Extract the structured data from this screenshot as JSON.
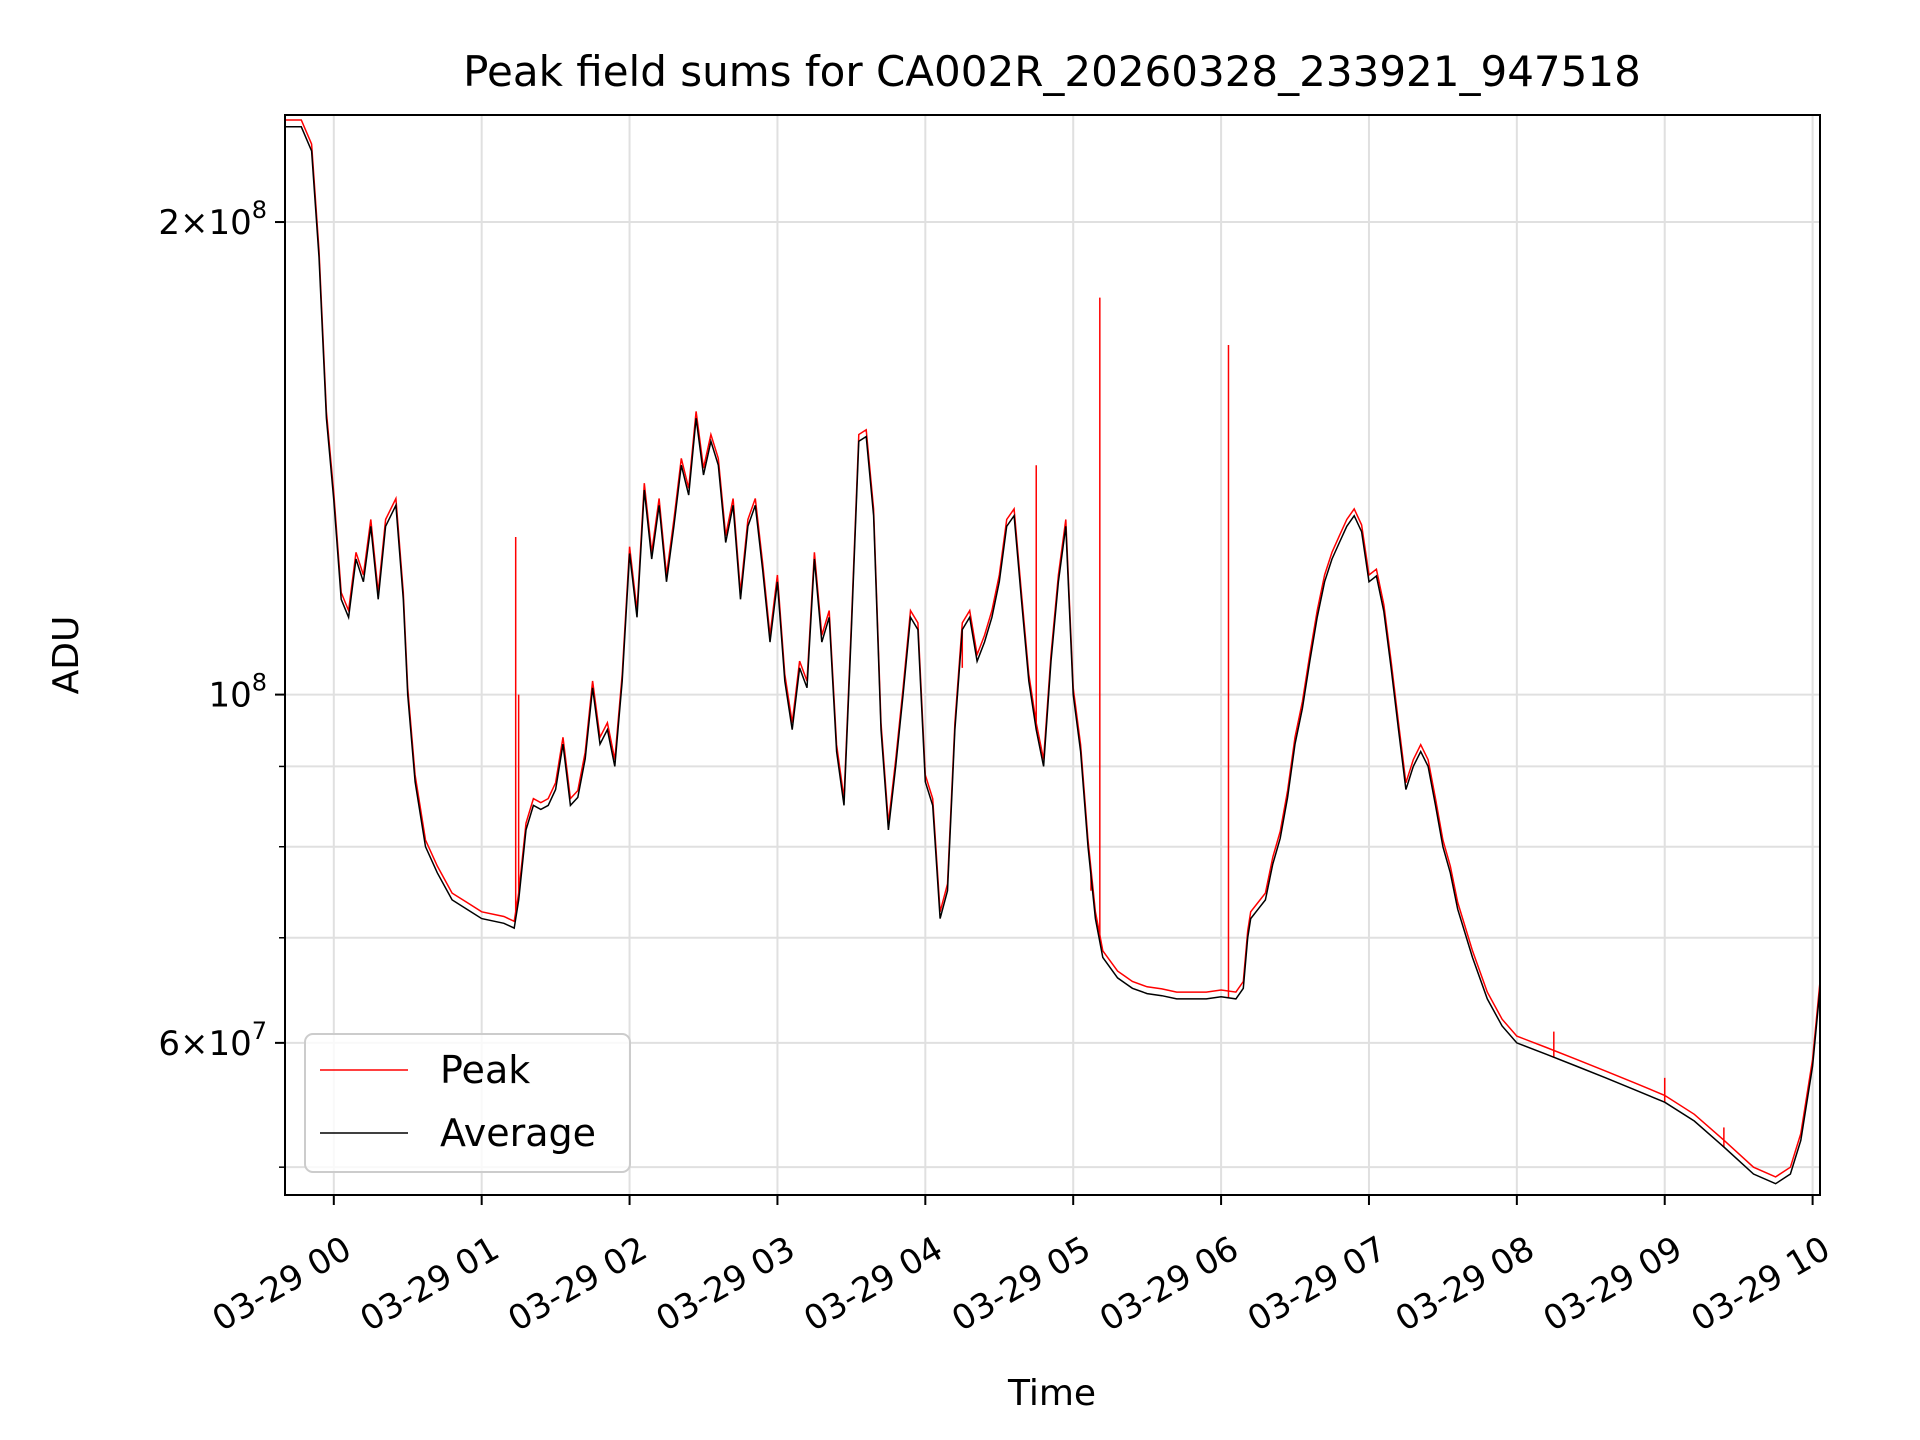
{
  "chart_data": {
    "type": "line",
    "title": "Peak field sums for CA002R_20260328_233921_947518",
    "xlabel": "Time",
    "ylabel": "ADU",
    "yscale": "log",
    "ylim": [
      48000000,
      234000000
    ],
    "xlim": [
      -0.33,
      10.05
    ],
    "x_unit": "hours since 03-29 00:00",
    "grid": true,
    "x_ticks": [
      {
        "value": 0,
        "label": "03-29 00"
      },
      {
        "value": 1,
        "label": "03-29 01"
      },
      {
        "value": 2,
        "label": "03-29 02"
      },
      {
        "value": 3,
        "label": "03-29 03"
      },
      {
        "value": 4,
        "label": "03-29 04"
      },
      {
        "value": 5,
        "label": "03-29 05"
      },
      {
        "value": 6,
        "label": "03-29 06"
      },
      {
        "value": 7,
        "label": "03-29 07"
      },
      {
        "value": 8,
        "label": "03-29 08"
      },
      {
        "value": 9,
        "label": "03-29 09"
      },
      {
        "value": 10,
        "label": "03-29 10"
      }
    ],
    "y_major_ticks": [
      {
        "value": 200000000,
        "mantissa": "2",
        "exp": "8"
      },
      {
        "value": 100000000,
        "mantissa": "",
        "exp": "8"
      },
      {
        "value": 60000000,
        "mantissa": "6",
        "exp": "7"
      }
    ],
    "y_minor_ticks": [
      50000000,
      70000000,
      80000000,
      90000000
    ],
    "legend": {
      "position": "lower-left",
      "entries": [
        {
          "label": "Peak",
          "color": "#ff0000"
        },
        {
          "label": "Average",
          "color": "#000000"
        }
      ]
    },
    "series": [
      {
        "name": "Average",
        "color": "#000000",
        "points": [
          [
            -0.33,
            230000000.0
          ],
          [
            -0.22,
            230000000.0
          ],
          [
            -0.15,
            222000000.0
          ],
          [
            -0.1,
            190000000.0
          ],
          [
            -0.05,
            150000000.0
          ],
          [
            0.0,
            133000000.0
          ],
          [
            0.05,
            115000000.0
          ],
          [
            0.1,
            112000000.0
          ],
          [
            0.15,
            122000000.0
          ],
          [
            0.2,
            118000000.0
          ],
          [
            0.25,
            128000000.0
          ],
          [
            0.3,
            115000000.0
          ],
          [
            0.35,
            128000000.0
          ],
          [
            0.42,
            132000000.0
          ],
          [
            0.47,
            115000000.0
          ],
          [
            0.5,
            100000000.0
          ],
          [
            0.55,
            88000000.0
          ],
          [
            0.62,
            80000000.0
          ],
          [
            0.7,
            77000000.0
          ],
          [
            0.8,
            74000000.0
          ],
          [
            0.9,
            73000000.0
          ],
          [
            1.0,
            72000000.0
          ],
          [
            1.15,
            71500000.0
          ],
          [
            1.22,
            71000000.0
          ],
          [
            1.25,
            74000000.0
          ],
          [
            1.3,
            82000000.0
          ],
          [
            1.35,
            85000000.0
          ],
          [
            1.4,
            84500000.0
          ],
          [
            1.45,
            85000000.0
          ],
          [
            1.5,
            87000000.0
          ],
          [
            1.55,
            93000000.0
          ],
          [
            1.6,
            85000000.0
          ],
          [
            1.65,
            86000000.0
          ],
          [
            1.7,
            91000000.0
          ],
          [
            1.75,
            101000000.0
          ],
          [
            1.8,
            93000000.0
          ],
          [
            1.85,
            95000000.0
          ],
          [
            1.9,
            90000000.0
          ],
          [
            1.95,
            102000000.0
          ],
          [
            2.0,
            123000000.0
          ],
          [
            2.05,
            112000000.0
          ],
          [
            2.1,
            135000000.0
          ],
          [
            2.15,
            122000000.0
          ],
          [
            2.2,
            132000000.0
          ],
          [
            2.25,
            118000000.0
          ],
          [
            2.3,
            128000000.0
          ],
          [
            2.35,
            140000000.0
          ],
          [
            2.4,
            134000000.0
          ],
          [
            2.45,
            150000000.0
          ],
          [
            2.5,
            138000000.0
          ],
          [
            2.55,
            145000000.0
          ],
          [
            2.6,
            140000000.0
          ],
          [
            2.65,
            125000000.0
          ],
          [
            2.7,
            132000000.0
          ],
          [
            2.75,
            115000000.0
          ],
          [
            2.8,
            128000000.0
          ],
          [
            2.85,
            132000000.0
          ],
          [
            2.9,
            120000000.0
          ],
          [
            2.95,
            108000000.0
          ],
          [
            3.0,
            118000000.0
          ],
          [
            3.05,
            102000000.0
          ],
          [
            3.1,
            95000000.0
          ],
          [
            3.15,
            104000000.0
          ],
          [
            3.2,
            101000000.0
          ],
          [
            3.25,
            122000000.0
          ],
          [
            3.3,
            108000000.0
          ],
          [
            3.35,
            112000000.0
          ],
          [
            3.4,
            92000000.0
          ],
          [
            3.45,
            85000000.0
          ],
          [
            3.5,
            110000000.0
          ],
          [
            3.55,
            145000000.0
          ],
          [
            3.6,
            146000000.0
          ],
          [
            3.65,
            130000000.0
          ],
          [
            3.7,
            95000000.0
          ],
          [
            3.75,
            82000000.0
          ],
          [
            3.8,
            90000000.0
          ],
          [
            3.85,
            100000000.0
          ],
          [
            3.9,
            112000000.0
          ],
          [
            3.95,
            110000000.0
          ],
          [
            4.0,
            88000000.0
          ],
          [
            4.05,
            85000000.0
          ],
          [
            4.1,
            72000000.0
          ],
          [
            4.15,
            75000000.0
          ],
          [
            4.2,
            95000000.0
          ],
          [
            4.25,
            110000000.0
          ],
          [
            4.3,
            112000000.0
          ],
          [
            4.35,
            105000000.0
          ],
          [
            4.4,
            108000000.0
          ],
          [
            4.45,
            112000000.0
          ],
          [
            4.5,
            118000000.0
          ],
          [
            4.55,
            128000000.0
          ],
          [
            4.6,
            130000000.0
          ],
          [
            4.65,
            115000000.0
          ],
          [
            4.7,
            102000000.0
          ],
          [
            4.75,
            95000000.0
          ],
          [
            4.8,
            90000000.0
          ],
          [
            4.85,
            105000000.0
          ],
          [
            4.9,
            118000000.0
          ],
          [
            4.95,
            128000000.0
          ],
          [
            5.0,
            100000000.0
          ],
          [
            5.05,
            92000000.0
          ],
          [
            5.1,
            80000000.0
          ],
          [
            5.15,
            72000000.0
          ],
          [
            5.2,
            68000000.0
          ],
          [
            5.3,
            66000000.0
          ],
          [
            5.35,
            65500000.0
          ],
          [
            5.4,
            65000000.0
          ],
          [
            5.5,
            64500000.0
          ],
          [
            5.6,
            64300000.0
          ],
          [
            5.7,
            64000000.0
          ],
          [
            5.8,
            64000000.0
          ],
          [
            5.9,
            64000000.0
          ],
          [
            6.0,
            64200000.0
          ],
          [
            6.1,
            64000000.0
          ],
          [
            6.15,
            65000000.0
          ],
          [
            6.18,
            70000000.0
          ],
          [
            6.2,
            72000000.0
          ],
          [
            6.25,
            73000000.0
          ],
          [
            6.3,
            74000000.0
          ],
          [
            6.35,
            78000000.0
          ],
          [
            6.4,
            81000000.0
          ],
          [
            6.45,
            86000000.0
          ],
          [
            6.5,
            93000000.0
          ],
          [
            6.55,
            98000000.0
          ],
          [
            6.6,
            105000000.0
          ],
          [
            6.65,
            112000000.0
          ],
          [
            6.7,
            118000000.0
          ],
          [
            6.75,
            122000000.0
          ],
          [
            6.8,
            125000000.0
          ],
          [
            6.85,
            128000000.0
          ],
          [
            6.9,
            130000000.0
          ],
          [
            6.95,
            127000000.0
          ],
          [
            7.0,
            118000000.0
          ],
          [
            7.05,
            119000000.0
          ],
          [
            7.1,
            113000000.0
          ],
          [
            7.15,
            104000000.0
          ],
          [
            7.2,
            95000000.0
          ],
          [
            7.25,
            87000000.0
          ],
          [
            7.3,
            90000000.0
          ],
          [
            7.35,
            92000000.0
          ],
          [
            7.4,
            90000000.0
          ],
          [
            7.45,
            85000000.0
          ],
          [
            7.5,
            80000000.0
          ],
          [
            7.55,
            77000000.0
          ],
          [
            7.6,
            73000000.0
          ],
          [
            7.7,
            68000000.0
          ],
          [
            7.8,
            64000000.0
          ],
          [
            7.9,
            61500000.0
          ],
          [
            8.0,
            60000000.0
          ],
          [
            8.2,
            59000000.0
          ],
          [
            8.4,
            58000000.0
          ],
          [
            8.6,
            57000000.0
          ],
          [
            8.8,
            56000000.0
          ],
          [
            9.0,
            55000000.0
          ],
          [
            9.2,
            53500000.0
          ],
          [
            9.4,
            51500000.0
          ],
          [
            9.6,
            49500000.0
          ],
          [
            9.75,
            48800000.0
          ],
          [
            9.85,
            49500000.0
          ],
          [
            9.92,
            52000000.0
          ],
          [
            10.0,
            58000000.0
          ],
          [
            10.05,
            65000000.0
          ]
        ]
      },
      {
        "name": "Peak",
        "color": "#ff0000",
        "spikes": [
          [
            1.23,
            126000000.0
          ],
          [
            1.25,
            100000000.0
          ],
          [
            4.25,
            104000000.0
          ],
          [
            4.75,
            140000000.0
          ],
          [
            5.12,
            75000000.0
          ],
          [
            5.18,
            179000000.0
          ],
          [
            6.05,
            167000000.0
          ],
          [
            8.25,
            61000000.0
          ],
          [
            9.0,
            57000000.0
          ],
          [
            9.4,
            53000000.0
          ]
        ]
      }
    ]
  }
}
